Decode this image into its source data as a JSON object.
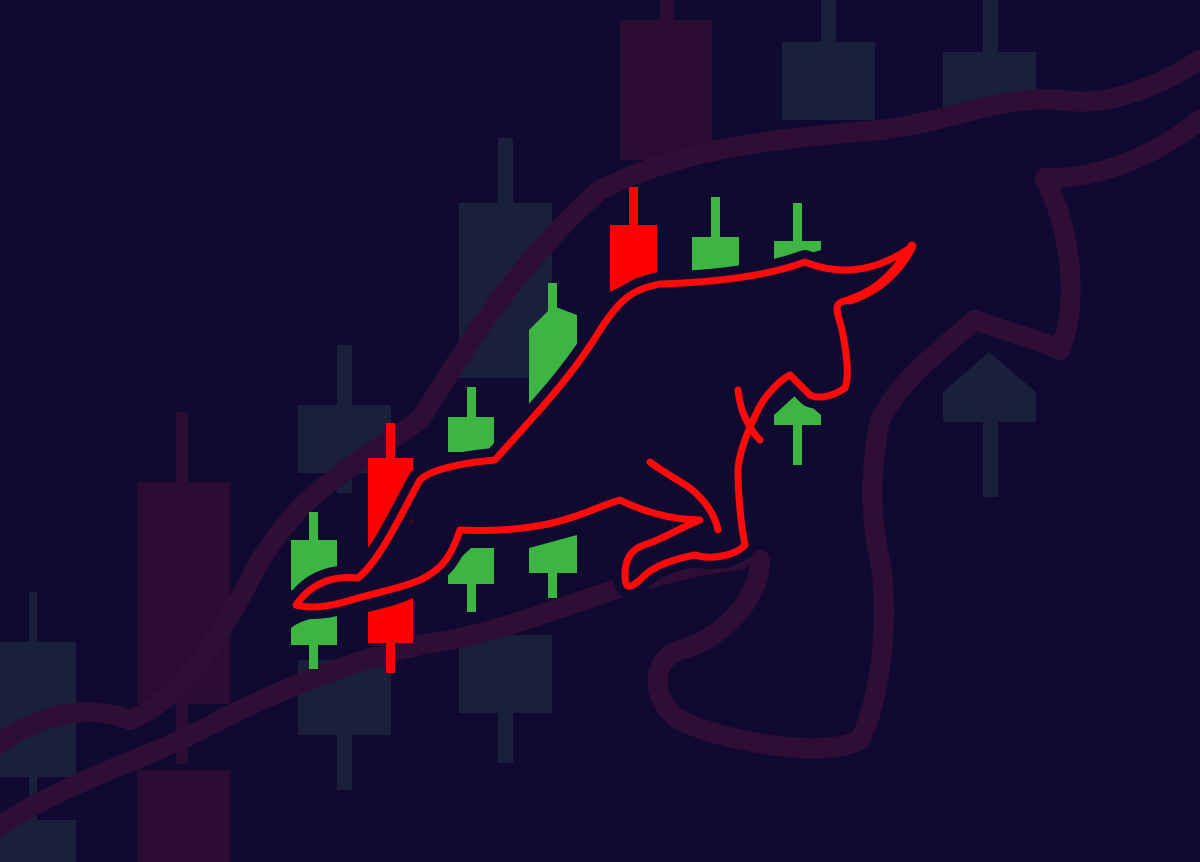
{
  "illustration": {
    "subject": "bull-market-candlestick-illustration",
    "colors": {
      "background": "#100a30",
      "bull_outline": "#ff0a0a",
      "candle_up": "#3cb543",
      "candle_down": "#ff0000",
      "ghost_candle_dark": "#1a1f3c",
      "ghost_candle_red": "#2a0b32",
      "ghost_bull_outline": "#2f0e36"
    },
    "foreground_candles": [
      {
        "direction": "up"
      },
      {
        "direction": "down"
      },
      {
        "direction": "down"
      },
      {
        "direction": "up"
      },
      {
        "direction": "up"
      },
      {
        "direction": "up"
      },
      {
        "direction": "up"
      },
      {
        "direction": "down"
      },
      {
        "direction": "up"
      },
      {
        "direction": "up"
      },
      {
        "direction": "up"
      },
      {
        "direction": "up"
      }
    ]
  }
}
